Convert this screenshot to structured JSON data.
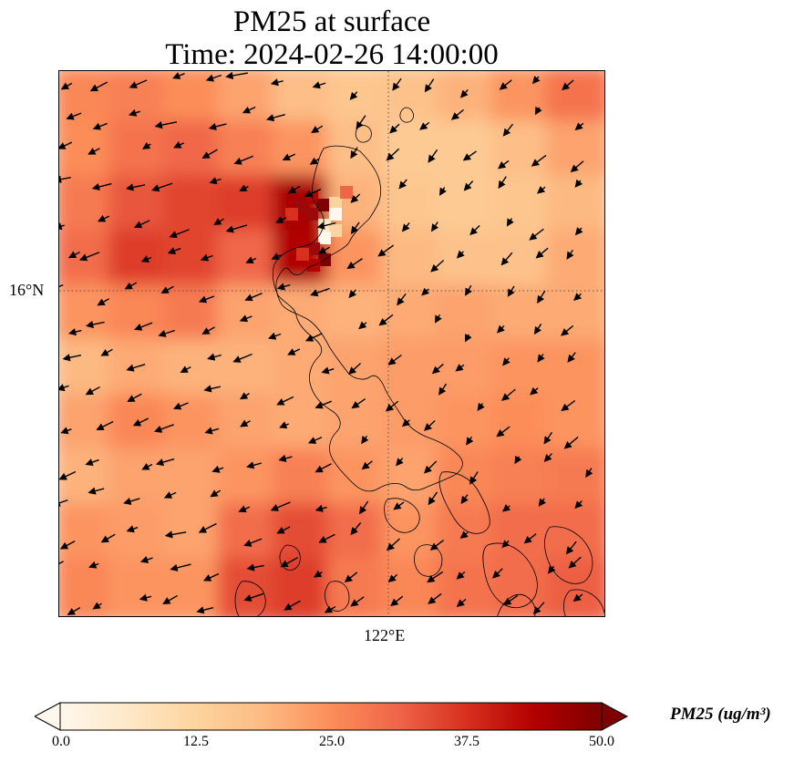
{
  "title": {
    "line1": "PM25 at surface",
    "line2": "Time: 2024-02-26 14:00:00"
  },
  "map": {
    "lat_label": "16°N",
    "lon_label": "122°E",
    "gridlines": "dotted"
  },
  "colorbar": {
    "label": "PM25 (ug/m³)",
    "ticks": [
      "0.0",
      "12.5",
      "25.0",
      "37.5",
      "50.0"
    ],
    "vmin": 0,
    "vmax": 50,
    "extend": "both",
    "colormap": "OrRd",
    "colors": [
      "#fff7ec",
      "#fee8c8",
      "#fdd49e",
      "#fdbb84",
      "#fc8d59",
      "#ef6548",
      "#d7301f",
      "#b30000",
      "#7f0000"
    ]
  },
  "chart_data": {
    "type": "heatmap",
    "variable": "PM25",
    "units": "ug/m^3",
    "overlay": "wind vectors",
    "grid_values_sample": [
      [
        26,
        27,
        25,
        22,
        18,
        16,
        17,
        20,
        24,
        29
      ],
      [
        25,
        29,
        31,
        27,
        24,
        18,
        15,
        15,
        18,
        22
      ],
      [
        28,
        33,
        35,
        36,
        45,
        20,
        16,
        15,
        16,
        19
      ],
      [
        30,
        36,
        35,
        31,
        44,
        24,
        19,
        17,
        17,
        21
      ],
      [
        24,
        26,
        28,
        22,
        21,
        20,
        21,
        22,
        21,
        21
      ],
      [
        19,
        21,
        20,
        20,
        21,
        22,
        23,
        23,
        24,
        24
      ],
      [
        22,
        26,
        24,
        22,
        21,
        22,
        23,
        24,
        25,
        24
      ],
      [
        20,
        22,
        22,
        24,
        27,
        24,
        22,
        26,
        27,
        28
      ],
      [
        24,
        23,
        22,
        30,
        34,
        30,
        24,
        28,
        30,
        30
      ],
      [
        26,
        24,
        24,
        34,
        36,
        28,
        26,
        29,
        30,
        32
      ]
    ]
  }
}
